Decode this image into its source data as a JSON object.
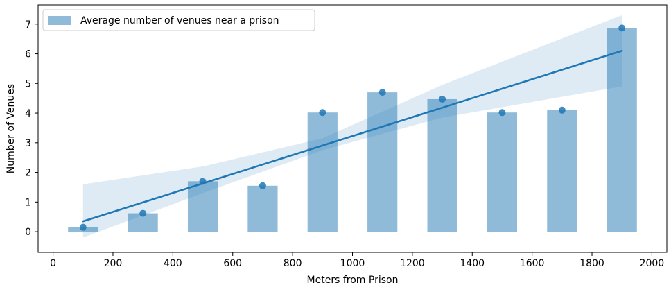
{
  "chart_data": {
    "type": "bar",
    "title": "",
    "xlabel": "Meters from Prison",
    "ylabel": "Number of Venues",
    "xlim": [
      -50,
      2050
    ],
    "ylim": [
      -0.7,
      7.65
    ],
    "x_ticks": [
      0,
      200,
      400,
      600,
      800,
      1000,
      1200,
      1400,
      1600,
      1800,
      2000
    ],
    "y_ticks": [
      0,
      1,
      2,
      3,
      4,
      5,
      6,
      7
    ],
    "grid": false,
    "legend": {
      "position": "top-left",
      "entries": [
        "Average number of venues near a prison"
      ]
    },
    "bar_width": 100,
    "series": [
      {
        "name": "Average number of venues near a prison",
        "kind": "bar",
        "color": "#1f77b4",
        "x": [
          100,
          300,
          500,
          700,
          900,
          1100,
          1300,
          1500,
          1700,
          1900
        ],
        "values": [
          0.15,
          0.62,
          1.7,
          1.55,
          4.02,
          4.7,
          4.47,
          4.02,
          4.1,
          6.87
        ]
      },
      {
        "kind": "scatter",
        "color": "#1f77b4",
        "x": [
          100,
          300,
          500,
          700,
          900,
          1100,
          1300,
          1500,
          1700,
          1900
        ],
        "values": [
          0.15,
          0.62,
          1.7,
          1.55,
          4.02,
          4.7,
          4.47,
          4.02,
          4.1,
          6.87
        ]
      },
      {
        "kind": "regression",
        "color": "#1f77b4",
        "x": [
          100,
          1900
        ],
        "values": [
          0.35,
          6.1
        ],
        "ci_x": [
          100,
          500,
          900,
          1300,
          1900
        ],
        "ci_lower": [
          -0.2,
          1.3,
          2.75,
          3.85,
          4.9
        ],
        "ci_upper": [
          1.6,
          2.2,
          3.15,
          4.95,
          7.3
        ]
      }
    ]
  }
}
